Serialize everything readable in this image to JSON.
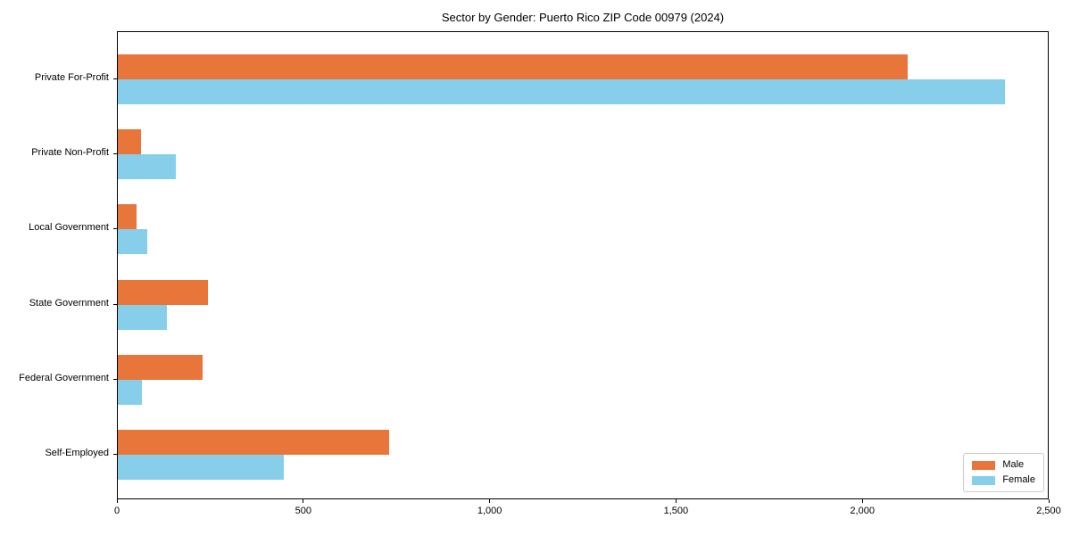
{
  "chart_data": {
    "type": "bar",
    "orientation": "horizontal",
    "title": "Sector by Gender: Puerto Rico ZIP Code 00979 (2024)",
    "categories": [
      "Private For-Profit",
      "Private Non-Profit",
      "Local Government",
      "State Government",
      "Federal Government",
      "Self-Employed"
    ],
    "series": [
      {
        "name": "Male",
        "color": "#E8763B",
        "values": [
          2120,
          62,
          51,
          241,
          227,
          728
        ]
      },
      {
        "name": "Female",
        "color": "#87CEEB",
        "values": [
          2380,
          156,
          80,
          132,
          65,
          445
        ]
      }
    ],
    "xlabel": "",
    "ylabel": "",
    "xlim": [
      0,
      2500
    ],
    "xticks": [
      0,
      500,
      1000,
      1500,
      2000,
      2500
    ],
    "xtick_labels": [
      "0",
      "500",
      "1,000",
      "1,500",
      "2,000",
      "2,500"
    ],
    "grid": false,
    "legend": {
      "position": "lower right",
      "entries": [
        "Male",
        "Female"
      ]
    },
    "colors": {
      "male": "#E8763B",
      "female": "#87CEEB",
      "axis": "#000000",
      "legend_border": "#cccccc",
      "background": "#ffffff"
    }
  }
}
